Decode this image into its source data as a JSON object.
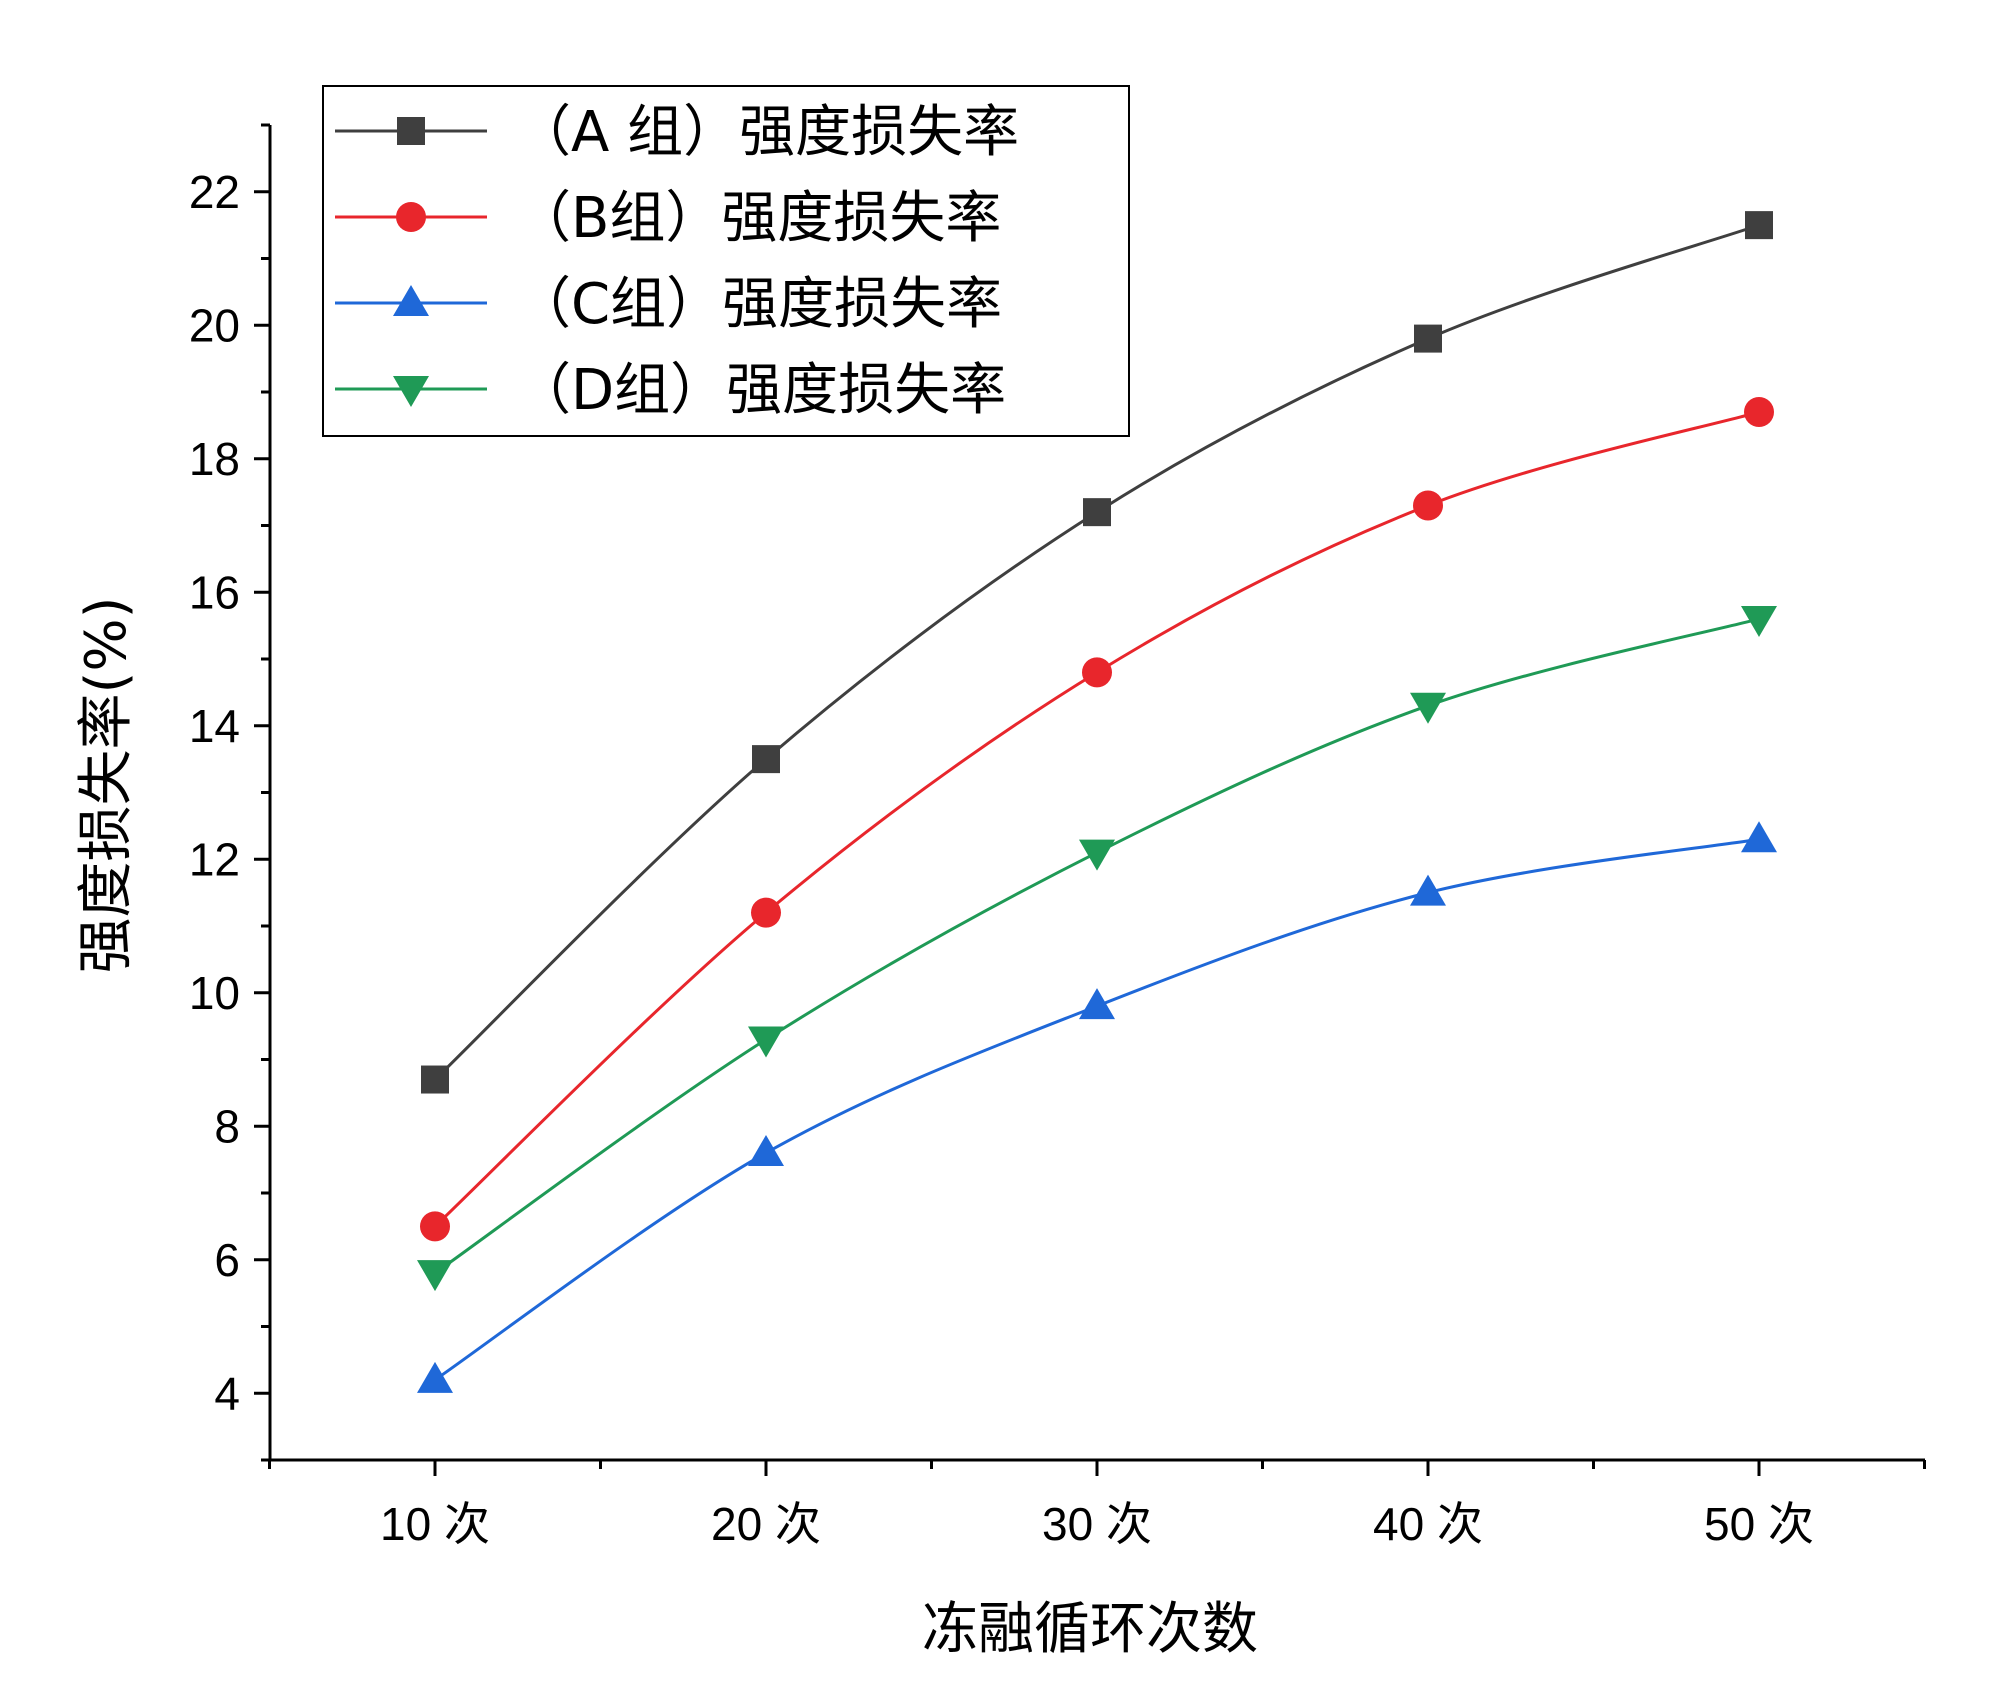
{
  "chart_data": {
    "type": "line",
    "categories": [
      "10 次",
      "20 次",
      "30 次",
      "40 次",
      "50 次"
    ],
    "xlabel": "冻融循环次数",
    "ylabel": "强度损失率(%)",
    "ylim": [
      3,
      23
    ],
    "yticks": [
      "4",
      "6",
      "8",
      "10",
      "12",
      "14",
      "16",
      "18",
      "20",
      "22"
    ],
    "legend_position": "top-left",
    "grid": false,
    "series": [
      {
        "name": "（A 组）强度损失率",
        "color": "#3f3f3f",
        "marker": "square",
        "values": [
          8.7,
          13.5,
          17.2,
          19.8,
          21.5
        ]
      },
      {
        "name": "（B组）强度损失率",
        "color": "#e8262c",
        "marker": "circle",
        "values": [
          6.5,
          11.2,
          14.8,
          17.3,
          18.7
        ]
      },
      {
        "name": "（C组）强度损失率",
        "color": "#1f68d8",
        "marker": "triangle-up",
        "values": [
          4.2,
          7.6,
          9.8,
          11.5,
          12.3
        ]
      },
      {
        "name": "（D组）强度损失率",
        "color": "#1f9a56",
        "marker": "triangle-down",
        "values": [
          5.8,
          9.3,
          12.1,
          14.3,
          15.6
        ]
      }
    ]
  }
}
